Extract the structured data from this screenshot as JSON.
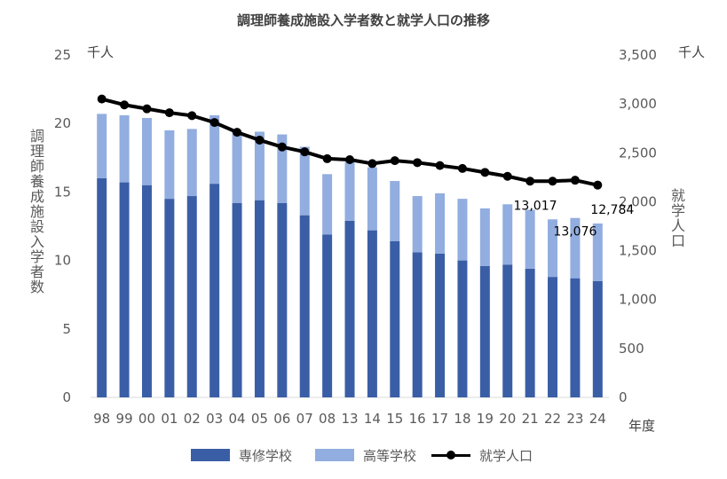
{
  "chart_data": {
    "type": "bar+line",
    "title": "調理師養成施設入学者数と就学人口の推移",
    "categories": [
      "98",
      "99",
      "00",
      "01",
      "02",
      "03",
      "04",
      "05",
      "06",
      "07",
      "08",
      "13",
      "14",
      "15",
      "16",
      "17",
      "18",
      "19",
      "20",
      "21",
      "22",
      "23",
      "24"
    ],
    "series": [
      {
        "name": "専修学校",
        "type": "stacked-bar",
        "axis": "left",
        "color": "#3a5ea6",
        "values": [
          16.0,
          15.7,
          15.5,
          14.5,
          14.7,
          15.6,
          14.2,
          14.4,
          14.2,
          13.3,
          11.9,
          12.9,
          12.2,
          11.4,
          10.6,
          10.5,
          10.0,
          9.6,
          9.7,
          9.4,
          8.8,
          8.7,
          8.5
        ]
      },
      {
        "name": "高等学校",
        "type": "stacked-bar",
        "axis": "left",
        "color": "#92addf",
        "values": [
          4.7,
          4.9,
          4.9,
          5.0,
          4.9,
          5.0,
          5.3,
          5.0,
          5.0,
          5.0,
          4.4,
          4.3,
          4.6,
          4.4,
          4.1,
          4.4,
          4.5,
          4.2,
          4.4,
          4.3,
          4.2,
          4.4,
          4.2
        ]
      },
      {
        "name": "就学人口",
        "type": "line",
        "axis": "right",
        "color": "#000000",
        "values": [
          3050,
          2990,
          2950,
          2910,
          2880,
          2810,
          2710,
          2630,
          2560,
          2510,
          2440,
          2430,
          2390,
          2420,
          2400,
          2370,
          2340,
          2300,
          2260,
          2210,
          2210,
          2220,
          2170
        ]
      }
    ],
    "y_left": {
      "label": "調理師養成施設入学者数",
      "unit": "千人",
      "range": [
        0,
        25
      ],
      "ticks": [
        "0",
        "5",
        "10",
        "15",
        "20",
        "25"
      ]
    },
    "y_right": {
      "label": "就学人口",
      "unit": "千人",
      "range": [
        0,
        3500
      ],
      "ticks": [
        "0",
        "500",
        "1,000",
        "1,500",
        "2,000",
        "2,500",
        "3,000",
        "3,500"
      ]
    },
    "x_unit": "年度",
    "annotations": [
      {
        "category": "22",
        "text": "13,017"
      },
      {
        "category": "23",
        "text": "13,076"
      },
      {
        "category": "24",
        "text": "12,784"
      }
    ],
    "legend": [
      "専修学校",
      "高等学校",
      "就学人口"
    ],
    "legend_position": "bottom",
    "grid": false
  }
}
